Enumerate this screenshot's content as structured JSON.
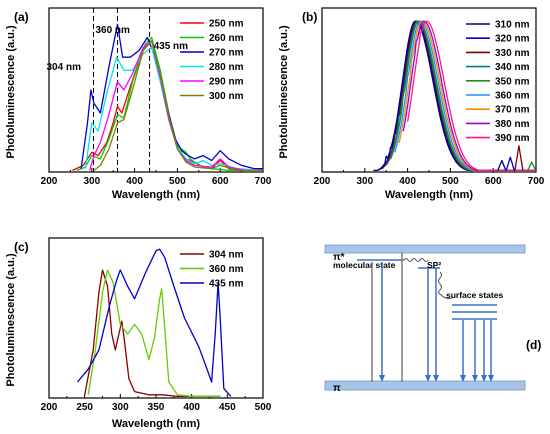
{
  "chart_data": [
    {
      "type": "line",
      "panel": "(a)",
      "xlabel": "Wavelength (nm)",
      "ylabel": "Photoluminescence (a.u.)",
      "xlim": [
        200,
        700
      ],
      "xticks": [
        200,
        300,
        400,
        500,
        600,
        700
      ],
      "grid": false,
      "legend_position": "top-right",
      "annotations": [
        {
          "text": "304 nm",
          "x": 304
        },
        {
          "text": "360 nm",
          "x": 360
        },
        {
          "text": "435 nm",
          "x": 435
        }
      ],
      "series": [
        {
          "name": "250 nm",
          "color": "#ff0000",
          "points": [
            [
              255,
              0.01
            ],
            [
              280,
              0.04
            ],
            [
              300,
              0.12
            ],
            [
              315,
              0.1
            ],
            [
              335,
              0.18
            ],
            [
              350,
              0.3
            ],
            [
              360,
              0.4
            ],
            [
              370,
              0.36
            ],
            [
              390,
              0.52
            ],
            [
              420,
              0.75
            ],
            [
              440,
              0.8
            ],
            [
              460,
              0.6
            ],
            [
              480,
              0.35
            ],
            [
              500,
              0.15
            ],
            [
              520,
              0.08
            ],
            [
              540,
              0.06
            ],
            [
              560,
              0.03
            ],
            [
              580,
              0.02
            ],
            [
              600,
              0.07
            ],
            [
              620,
              0.02
            ],
            [
              650,
              0.01
            ],
            [
              700,
              0.01
            ]
          ]
        },
        {
          "name": "260 nm",
          "color": "#00cc00",
          "points": [
            [
              265,
              0.01
            ],
            [
              285,
              0.03
            ],
            [
              300,
              0.1
            ],
            [
              320,
              0.08
            ],
            [
              340,
              0.2
            ],
            [
              360,
              0.35
            ],
            [
              375,
              0.33
            ],
            [
              395,
              0.55
            ],
            [
              425,
              0.78
            ],
            [
              440,
              0.82
            ],
            [
              460,
              0.62
            ],
            [
              480,
              0.36
            ],
            [
              500,
              0.16
            ],
            [
              520,
              0.12
            ],
            [
              530,
              0.08
            ],
            [
              550,
              0.04
            ],
            [
              580,
              0.02
            ],
            [
              620,
              0.01
            ],
            [
              700,
              0.01
            ]
          ]
        },
        {
          "name": "270 nm",
          "color": "#0000cc",
          "points": [
            [
              275,
              0.02
            ],
            [
              290,
              0.3
            ],
            [
              298,
              0.5
            ],
            [
              305,
              0.42
            ],
            [
              320,
              0.36
            ],
            [
              340,
              0.64
            ],
            [
              360,
              0.9
            ],
            [
              372,
              0.7
            ],
            [
              390,
              0.7
            ],
            [
              410,
              0.74
            ],
            [
              430,
              0.82
            ],
            [
              445,
              0.72
            ],
            [
              465,
              0.52
            ],
            [
              480,
              0.35
            ],
            [
              495,
              0.2
            ],
            [
              510,
              0.13
            ],
            [
              525,
              0.1
            ],
            [
              540,
              0.08
            ],
            [
              560,
              0.1
            ],
            [
              580,
              0.07
            ],
            [
              600,
              0.13
            ],
            [
              620,
              0.08
            ],
            [
              650,
              0.04
            ],
            [
              680,
              0.02
            ],
            [
              700,
              0.02
            ]
          ]
        },
        {
          "name": "280 nm",
          "color": "#00e5ee",
          "points": [
            [
              285,
              0.02
            ],
            [
              300,
              0.3
            ],
            [
              315,
              0.25
            ],
            [
              335,
              0.48
            ],
            [
              358,
              0.7
            ],
            [
              375,
              0.62
            ],
            [
              395,
              0.62
            ],
            [
              420,
              0.72
            ],
            [
              440,
              0.76
            ],
            [
              460,
              0.55
            ],
            [
              480,
              0.32
            ],
            [
              500,
              0.15
            ],
            [
              520,
              0.08
            ],
            [
              540,
              0.05
            ],
            [
              560,
              0.07
            ],
            [
              580,
              0.04
            ],
            [
              600,
              0.05
            ],
            [
              640,
              0.02
            ],
            [
              700,
              0.01
            ]
          ]
        },
        {
          "name": "290 nm",
          "color": "#ff00ff",
          "points": [
            [
              295,
              0.01
            ],
            [
              305,
              0.1
            ],
            [
              320,
              0.18
            ],
            [
              340,
              0.35
            ],
            [
              360,
              0.55
            ],
            [
              375,
              0.5
            ],
            [
              395,
              0.6
            ],
            [
              420,
              0.76
            ],
            [
              440,
              0.8
            ],
            [
              460,
              0.58
            ],
            [
              480,
              0.32
            ],
            [
              500,
              0.14
            ],
            [
              520,
              0.07
            ],
            [
              540,
              0.04
            ],
            [
              580,
              0.03
            ],
            [
              600,
              0.08
            ],
            [
              620,
              0.03
            ],
            [
              660,
              0.01
            ],
            [
              700,
              0.01
            ]
          ]
        },
        {
          "name": "300 nm",
          "color": "#808000",
          "points": [
            [
              305,
              0.01
            ],
            [
              320,
              0.04
            ],
            [
              340,
              0.14
            ],
            [
              360,
              0.3
            ],
            [
              375,
              0.32
            ],
            [
              395,
              0.5
            ],
            [
              420,
              0.74
            ],
            [
              440,
              0.8
            ],
            [
              460,
              0.6
            ],
            [
              480,
              0.34
            ],
            [
              500,
              0.14
            ],
            [
              520,
              0.06
            ],
            [
              540,
              0.03
            ],
            [
              580,
              0.02
            ],
            [
              600,
              0.04
            ],
            [
              640,
              0.01
            ],
            [
              700,
              0.01
            ]
          ]
        }
      ]
    },
    {
      "type": "line",
      "panel": "(b)",
      "xlabel": "Wavelength (nm)",
      "ylabel": "Photoluminescence (a.u.)",
      "xlim": [
        200,
        700
      ],
      "xticks": [
        200,
        300,
        400,
        500,
        600,
        700
      ],
      "grid": false,
      "legend_position": "top-right",
      "series": [
        {
          "name": "310 nm",
          "color": "#000080",
          "peak": 418
        },
        {
          "name": "320 nm",
          "color": "#0000cd",
          "peak": 420
        },
        {
          "name": "330 nm",
          "color": "#800000",
          "peak": 422
        },
        {
          "name": "340 nm",
          "color": "#008080",
          "peak": 424
        },
        {
          "name": "350 nm",
          "color": "#228b22",
          "peak": 426
        },
        {
          "name": "360 nm",
          "color": "#1e90ff",
          "peak": 430
        },
        {
          "name": "370 nm",
          "color": "#ff8c00",
          "peak": 434
        },
        {
          "name": "380 nm",
          "color": "#9400d3",
          "peak": 438
        },
        {
          "name": "390 nm",
          "color": "#ff1493",
          "peak": 444
        }
      ]
    },
    {
      "type": "line",
      "panel": "(c)",
      "xlabel": "Wavelength (nm)",
      "ylabel": "Photoluminescence (a.u.)",
      "xlim": [
        200,
        500
      ],
      "xticks": [
        200,
        250,
        300,
        350,
        400,
        450,
        500
      ],
      "grid": false,
      "legend_position": "top-right",
      "series": [
        {
          "name": "304 nm",
          "color": "#8b0000",
          "points": [
            [
              250,
              0.02
            ],
            [
              262,
              0.3
            ],
            [
              270,
              0.66
            ],
            [
              275,
              0.8
            ],
            [
              282,
              0.7
            ],
            [
              288,
              0.4
            ],
            [
              293,
              0.3
            ],
            [
              298,
              0.4
            ],
            [
              302,
              0.48
            ],
            [
              306,
              0.35
            ],
            [
              312,
              0.12
            ],
            [
              320,
              0.04
            ],
            [
              340,
              0.02
            ],
            [
              360,
              0.02
            ],
            [
              380,
              0.01
            ],
            [
              400,
              0.01
            ],
            [
              440,
              0.01
            ]
          ]
        },
        {
          "name": "360 nm",
          "color": "#66cc00",
          "points": [
            [
              255,
              0.02
            ],
            [
              265,
              0.3
            ],
            [
              275,
              0.66
            ],
            [
              282,
              0.8
            ],
            [
              290,
              0.72
            ],
            [
              300,
              0.46
            ],
            [
              310,
              0.4
            ],
            [
              320,
              0.46
            ],
            [
              330,
              0.4
            ],
            [
              340,
              0.24
            ],
            [
              348,
              0.38
            ],
            [
              355,
              0.62
            ],
            [
              358,
              0.68
            ],
            [
              362,
              0.45
            ],
            [
              368,
              0.1
            ],
            [
              380,
              0.02
            ],
            [
              400,
              0.01
            ],
            [
              440,
              0.01
            ]
          ]
        },
        {
          "name": "435 nm",
          "color": "#0000cc",
          "points": [
            [
              240,
              0.1
            ],
            [
              255,
              0.18
            ],
            [
              270,
              0.3
            ],
            [
              285,
              0.58
            ],
            [
              295,
              0.74
            ],
            [
              300,
              0.8
            ],
            [
              310,
              0.7
            ],
            [
              320,
              0.62
            ],
            [
              335,
              0.78
            ],
            [
              350,
              0.92
            ],
            [
              355,
              0.93
            ],
            [
              362,
              0.88
            ],
            [
              375,
              0.7
            ],
            [
              390,
              0.5
            ],
            [
              410,
              0.32
            ],
            [
              420,
              0.2
            ],
            [
              428,
              0.1
            ],
            [
              433,
              0.4
            ],
            [
              437,
              0.72
            ],
            [
              440,
              0.5
            ],
            [
              445,
              0.06
            ],
            [
              455,
              0.01
            ]
          ]
        }
      ]
    },
    {
      "type": "diagram",
      "panel": "(d)",
      "labels": {
        "pi_star": "π*",
        "pi": "π",
        "molecular_state": "molecular state",
        "sp2": "SP²",
        "surface_states": "surface states"
      },
      "colors": {
        "band": "#a8c4e8",
        "band_edge": "#6f96cc",
        "arrow": "#3a6fc4",
        "vertical": "#7d7d7d"
      }
    }
  ]
}
